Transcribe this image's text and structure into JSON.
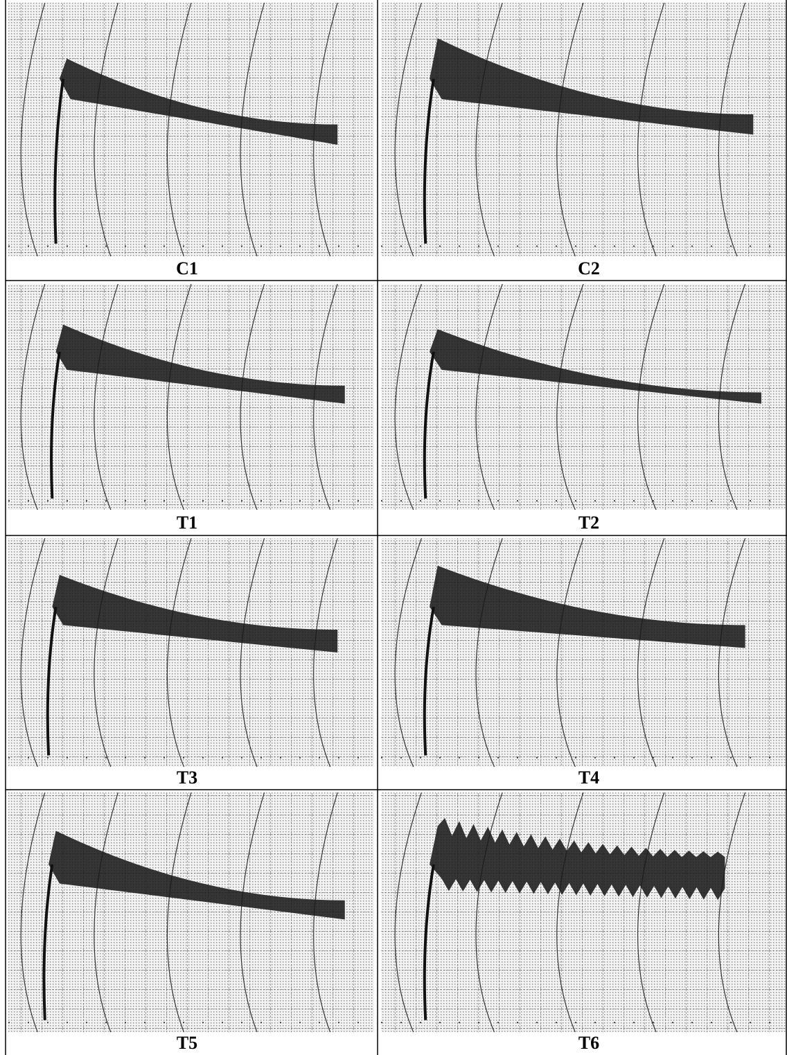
{
  "panels": [
    {
      "label": "C1"
    },
    {
      "label": "C2"
    },
    {
      "label": "T1"
    },
    {
      "label": "T2"
    },
    {
      "label": "T3"
    },
    {
      "label": "T4"
    },
    {
      "label": "T5"
    },
    {
      "label": "T6"
    }
  ]
}
